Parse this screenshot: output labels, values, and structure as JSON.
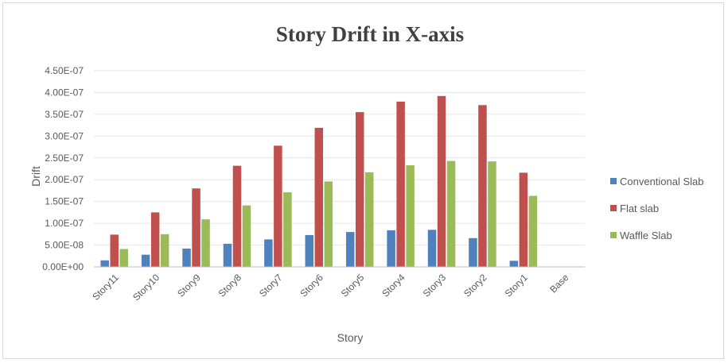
{
  "chart_data": {
    "type": "bar",
    "title": "Story Drift in X-axis",
    "xlabel": "Story",
    "ylabel": "Drift",
    "categories": [
      "Story11",
      "Story10",
      "Story9",
      "Story8",
      "Story7",
      "Story6",
      "Story5",
      "Story4",
      "Story3",
      "Story2",
      "Story1",
      "Base"
    ],
    "ylim": [
      0,
      4.5e-07
    ],
    "yticks": [
      0,
      5e-08,
      1e-07,
      1.5e-07,
      2e-07,
      2.5e-07,
      3e-07,
      3.5e-07,
      4e-07,
      4.5e-07
    ],
    "ytick_labels": [
      "0.00E+00",
      "5.00E-08",
      "1.00E-07",
      "1.50E-07",
      "2.00E-07",
      "2.50E-07",
      "3.00E-07",
      "3.50E-07",
      "4.00E-07",
      "4.50E-07"
    ],
    "grid": true,
    "legend_position": "right",
    "series": [
      {
        "name": "Conventional Slab",
        "color": "#4f81bd",
        "values": [
          1.5e-08,
          2.8e-08,
          4.2e-08,
          5.3e-08,
          6.3e-08,
          7.3e-08,
          8e-08,
          8.4e-08,
          8.5e-08,
          6.6e-08,
          1.4e-08,
          0
        ]
      },
      {
        "name": "Flat slab",
        "color": "#c0504d",
        "values": [
          7.4e-08,
          1.25e-07,
          1.8e-07,
          2.32e-07,
          2.78e-07,
          3.19e-07,
          3.55e-07,
          3.79e-07,
          3.92e-07,
          3.71e-07,
          2.16e-07,
          0
        ]
      },
      {
        "name": "Waffle Slab",
        "color": "#9bbb59",
        "values": [
          4.1e-08,
          7.5e-08,
          1.09e-07,
          1.41e-07,
          1.71e-07,
          1.96e-07,
          2.17e-07,
          2.33e-07,
          2.43e-07,
          2.42e-07,
          1.63e-07,
          0
        ]
      }
    ]
  }
}
